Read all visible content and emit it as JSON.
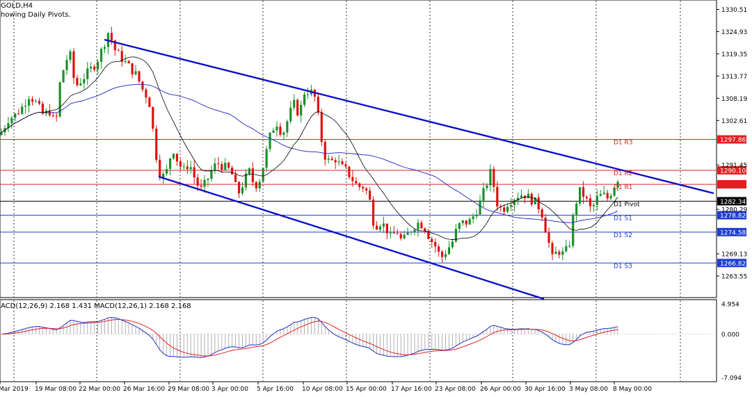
{
  "window": {
    "symbol": "GOLD,H4",
    "indicator_note": "howing Daily Pivots."
  },
  "price_axis": {
    "labels": [
      "1330.51",
      "1324.93",
      "1319.35",
      "1313.77",
      "1308.19",
      "1302.61",
      "1291.45",
      "1280.29",
      "1269.13",
      "1263.55"
    ],
    "values": [
      1330.51,
      1324.93,
      1319.35,
      1313.77,
      1308.19,
      1302.61,
      1291.45,
      1280.29,
      1269.13,
      1263.55
    ],
    "min": 1260.0,
    "max": 1333.0
  },
  "pivots": [
    {
      "name": "D1 R3",
      "value": 1297.86,
      "tag": "1297.86",
      "color": "#e02020"
    },
    {
      "name": "D1 R2",
      "value": 1290.1,
      "tag": "1290.10",
      "color": "#e02020"
    },
    {
      "name": "D1 R1",
      "value": 1286.58,
      "tag": "1286.58",
      "color": "#e02020"
    },
    {
      "name": "D1 Pivot",
      "value": 1282.34,
      "tag": "1282.34",
      "color": "#000000"
    },
    {
      "name": "D1 S1",
      "value": 1278.82,
      "tag": "1278.82",
      "color": "#1f3fd0"
    },
    {
      "name": "D1 S2",
      "value": 1274.58,
      "tag": "1274.58",
      "color": "#1f3fd0"
    },
    {
      "name": "D1 S3",
      "value": 1266.82,
      "tag": "1266.82",
      "color": "#1f3fd0"
    }
  ],
  "time_axis": [
    "Mar 2019",
    "19 Mar 08:00",
    "22 Mar 00:00",
    "26 Mar 16:00",
    "29 Mar 08:00",
    "3 Apr 00:00",
    "5 Apr 16:00",
    "10 Apr 08:00",
    "15 Apr 00:00",
    "17 Apr 16:00",
    "23 Apr 08:00",
    "26 Apr 00:00",
    "30 Apr 16:00",
    "3 May 08:00",
    "8 May 00:00"
  ],
  "macd": {
    "label": "ACD(12,26,9) 2.168 1.431 MACD(12,26,1) 2.168 2.168",
    "axis_labels": [
      "4.954",
      "0.000",
      "-7.094"
    ],
    "axis_values": [
      4.954,
      0.0,
      -7.094
    ]
  },
  "colors": {
    "bull": "#1a8f2a",
    "bear": "#e01010",
    "channel": "#0a10c8",
    "ma_slow": "#2020c0",
    "ma_fast": "#000000",
    "macd_line": "#2030c0",
    "signal_line": "#e02020",
    "pivot_tag_price": "#e02020"
  }
}
